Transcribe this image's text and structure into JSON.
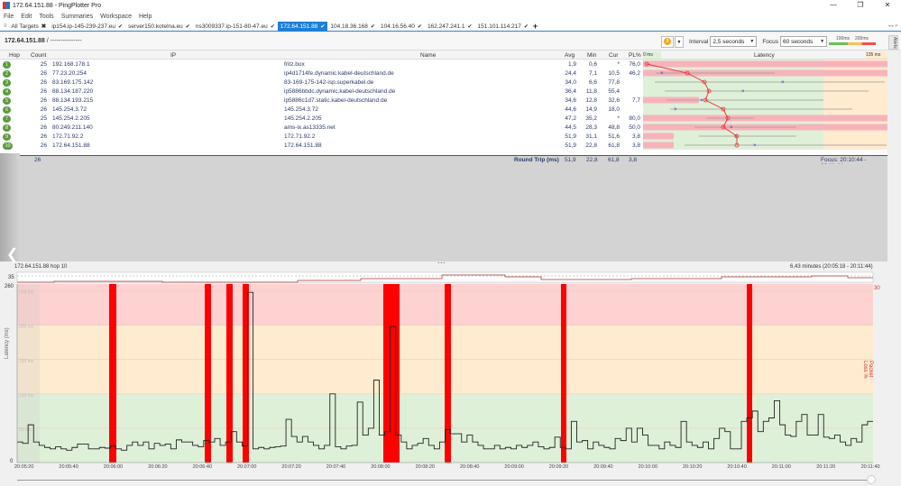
{
  "window": {
    "title": "172.64.151.88 - PingPlotter Pro",
    "controls": [
      "minimize",
      "restore",
      "close"
    ]
  },
  "menu": [
    "File",
    "Edit",
    "Tools",
    "Summaries",
    "Workspace",
    "Help"
  ],
  "tabs": [
    {
      "label": "All Targets",
      "mark": "✖",
      "active": false
    },
    {
      "label": "ip154.ip-145-239-237.eu",
      "mark": "✔",
      "active": false
    },
    {
      "label": "server150.kotelna.eu",
      "mark": "✔",
      "active": false
    },
    {
      "label": "ns3009337.ip-151-80-47.eu",
      "mark": "✔",
      "active": false
    },
    {
      "label": "172.64.151.88",
      "mark": "✔",
      "active": true
    },
    {
      "label": "104.18.36.168",
      "mark": "✔",
      "active": false
    },
    {
      "label": "104.16.56.40",
      "mark": "✔",
      "active": false
    },
    {
      "label": "162.247.241.1",
      "mark": "✔",
      "active": false
    },
    {
      "label": "151.101.114.217",
      "mark": "✔",
      "active": false
    }
  ],
  "tab_add": "+",
  "toolbar": {
    "breadcrumb_target": "172.64.151.88",
    "breadcrumb_rest": " / ---------------",
    "interval_label": "Interval",
    "interval_value": "2,5 seconds",
    "focus_label": "Focus",
    "focus_value": "60 seconds",
    "legend_100": "100ms",
    "legend_200": "200ms",
    "alerts_label": "Alerts"
  },
  "grid": {
    "headers": {
      "hop": "Hop",
      "count": "Count",
      "ip": "IP",
      "name": "Name",
      "avg": "Avg",
      "min": "Min",
      "cur": "Cur",
      "pl": "PL%",
      "lat_min": "0 ms",
      "latency": "Latency",
      "lat_max": "135 ms"
    },
    "rows": [
      {
        "hop": "1",
        "count": "25",
        "ip": "192.168.178.1",
        "name": "fritz.box",
        "avg": "1,9",
        "min": "0,6",
        "cur": "*",
        "pl": "76,0"
      },
      {
        "hop": "2",
        "count": "26",
        "ip": "77.23.20.254",
        "name": "ip4d1714fe.dynamic.kabel-deutschland.de",
        "avg": "24,4",
        "min": "7,1",
        "cur": "10,5",
        "pl": "46,2"
      },
      {
        "hop": "3",
        "count": "26",
        "ip": "83.169.175.142",
        "name": "83-169-175-142-isp.superkabel.de",
        "avg": "34,0",
        "min": "6,6",
        "cur": "77,8",
        "pl": ""
      },
      {
        "hop": "4",
        "count": "26",
        "ip": "88.134.187.220",
        "name": "ip5886bbdc.dynamic.kabel-deutschland.de",
        "avg": "36,4",
        "min": "11,8",
        "cur": "55,4",
        "pl": ""
      },
      {
        "hop": "5",
        "count": "26",
        "ip": "88.134.193.215",
        "name": "ip5886c1d7.static.kabel-deutschland.de",
        "avg": "34,6",
        "min": "12,8",
        "cur": "32,6",
        "pl": "7,7"
      },
      {
        "hop": "6",
        "count": "26",
        "ip": "145.254.3.72",
        "name": "145.254.3.72",
        "avg": "44,6",
        "min": "14,9",
        "cur": "18,0",
        "pl": ""
      },
      {
        "hop": "7",
        "count": "25",
        "ip": "145.254.2.205",
        "name": "145.254.2.205",
        "avg": "47,2",
        "min": "35,2",
        "cur": "*",
        "pl": "80,0"
      },
      {
        "hop": "8",
        "count": "26",
        "ip": "80.249.211.140",
        "name": "ams-ix.as13335.net",
        "avg": "44,5",
        "min": "28,3",
        "cur": "48,8",
        "pl": "50,0"
      },
      {
        "hop": "9",
        "count": "26",
        "ip": "172.71.92.2",
        "name": "172.71.92.2",
        "avg": "51,9",
        "min": "31,1",
        "cur": "51,6",
        "pl": "3,8"
      },
      {
        "hop": "10",
        "count": "26",
        "ip": "172.64.151.88",
        "name": "172.64.151.88",
        "avg": "51,9",
        "min": "22,8",
        "cur": "61,8",
        "pl": "3,8"
      }
    ],
    "roundtrip": {
      "count": "26",
      "label": "Round Trip (ms)",
      "avg": "51,9",
      "min": "22,8",
      "cur": "61,8",
      "pl": "3,8",
      "focus": "Focus: 20:10:44 - 20:11:44"
    }
  },
  "chart": {
    "header": "172.64.151.88 hop 10",
    "range": "6,43 minutes (20:05:18 - 20:11:44)",
    "y_top": "260",
    "y_zero": "0",
    "mini_y": "35",
    "pl_top": "30",
    "ylabel": "Latency (ms)",
    "plabel": "Packet Loss %",
    "band_labels": [
      "250 ms",
      "200 ms",
      "150 ms",
      "100 ms",
      "50 ms"
    ]
  },
  "chart_data": {
    "type": "line",
    "title": "172.64.151.88 hop 10",
    "xlabel": "",
    "ylabel": "Latency (ms)",
    "y2label": "Packet Loss %",
    "ylim": [
      0,
      260
    ],
    "x_ticks": [
      "20:05:20",
      "20:05:40",
      "20:06:00",
      "20:06:20",
      "20:06:40",
      "20:07:00",
      "20:07:20",
      "20:07:40",
      "20:08:00",
      "20:08:20",
      "20:08:40",
      "20:09:00",
      "20:09:20",
      "20:09:40",
      "20:10:00",
      "20:10:20",
      "20:10:40",
      "20:11:00",
      "20:11:20",
      "20:11:40"
    ],
    "bands": [
      {
        "range": [
          0,
          100
        ],
        "color": "#dff0d8"
      },
      {
        "range": [
          100,
          200
        ],
        "color": "#ffebcf"
      },
      {
        "range": [
          200,
          260
        ],
        "color": "#ffd2d2"
      }
    ],
    "packet_loss_times": [
      "20:06:01",
      "20:06:44",
      "20:06:54",
      "20:07:02",
      "20:08:04",
      "20:08:28",
      "20:09:24",
      "20:10:44"
    ],
    "series": [
      {
        "name": "latency",
        "values": [
          30,
          28,
          55,
          30,
          25,
          22,
          20,
          23,
          20,
          18,
          22,
          27,
          27,
          20,
          20,
          22,
          21,
          24,
          20,
          18,
          25,
          30,
          25,
          30,
          20,
          28,
          25,
          27,
          20,
          33,
          30,
          30,
          25,
          23,
          32,
          30,
          35,
          25,
          30,
          45,
          30,
          24,
          248,
          20,
          22,
          20,
          22,
          23,
          24,
          63,
          38,
          30,
          38,
          30,
          25,
          20,
          25,
          100,
          23,
          20,
          24,
          25,
          88,
          40,
          50,
          120,
          40,
          45,
          198,
          40,
          30,
          20,
          25,
          28,
          35,
          25,
          20,
          30,
          48,
          42,
          42,
          30,
          40,
          30,
          25,
          20,
          20,
          25,
          20,
          22,
          20,
          25,
          22,
          25,
          30,
          23,
          20,
          22,
          37,
          22,
          20,
          60,
          30,
          32,
          20,
          30,
          25,
          22,
          20,
          35,
          32,
          50,
          30,
          50,
          40,
          25,
          25,
          20,
          30,
          25,
          22,
          60,
          30,
          25,
          22,
          30,
          20,
          35,
          50,
          45,
          20,
          20,
          60,
          65,
          75,
          45,
          60,
          65,
          90,
          55,
          40,
          38,
          60,
          70,
          40,
          40,
          70,
          37,
          35,
          40,
          30,
          25,
          35,
          30,
          55,
          60
        ]
      }
    ]
  }
}
